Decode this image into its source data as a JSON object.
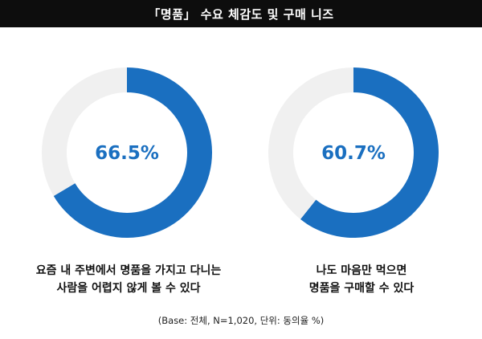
{
  "header": {
    "title": "「명품」 수요 체감도 및 구매 니즈"
  },
  "chart_data": [
    {
      "type": "pie",
      "variant": "donut",
      "values": [
        66.5,
        33.5
      ],
      "center_label": "66.5%",
      "caption_lines": [
        "요즘 내 주변에서 명품을 가지고 다니는",
        "사람을 어렵지 않게 볼 수 있다"
      ]
    },
    {
      "type": "pie",
      "variant": "donut",
      "values": [
        60.7,
        39.3
      ],
      "center_label": "60.7%",
      "caption_lines": [
        "나도 마음만 먹으면",
        "명품을 구매할 수 있다"
      ]
    }
  ],
  "colors": {
    "accent": "#1a6fc0",
    "remainder": "#f0f0f0",
    "title_bg": "#0d0d0d"
  },
  "footnote": "(Base: 전체, N=1,020, 단위: 동의율 %)"
}
